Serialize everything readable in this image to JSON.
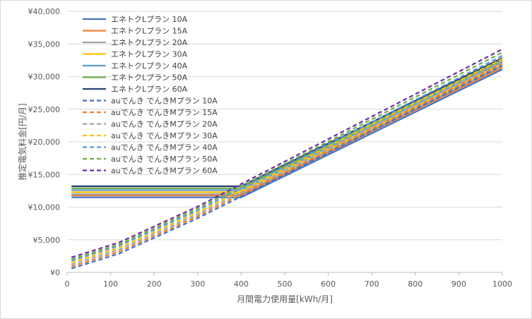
{
  "chart_data": {
    "type": "line",
    "xlabel": "月間電力使用量[kWh/月]",
    "ylabel": "推定電気料金[円/月]",
    "xlim": [
      0,
      1000
    ],
    "ylim": [
      0,
      40000
    ],
    "x_ticks": [
      "0",
      "100",
      "200",
      "300",
      "400",
      "500",
      "600",
      "700",
      "800",
      "900",
      "1000"
    ],
    "y_ticks": [
      "¥0",
      "¥5,000",
      "¥10,000",
      "¥15,000",
      "¥20,000",
      "¥25,000",
      "¥30,000",
      "¥35,000",
      "¥40,000"
    ],
    "grid": "horizontal",
    "legend_position": "top-left",
    "series": [
      {
        "name": "エネトクLプラン 10A",
        "color": "#4472C4",
        "dash": "solid",
        "x": [
          10,
          400,
          1000
        ],
        "y": [
          11500,
          11500,
          31100
        ]
      },
      {
        "name": "エネトクLプラン 15A",
        "color": "#ED7D31",
        "dash": "solid",
        "x": [
          10,
          400,
          1000
        ],
        "y": [
          11800,
          11800,
          31400
        ]
      },
      {
        "name": "エネトクLプラン 20A",
        "color": "#A5A5A5",
        "dash": "solid",
        "x": [
          10,
          400,
          1000
        ],
        "y": [
          12000,
          12000,
          31650
        ]
      },
      {
        "name": "エネトクLプラン 30A",
        "color": "#FFC000",
        "dash": "solid",
        "x": [
          10,
          400,
          1000
        ],
        "y": [
          12300,
          12300,
          31950
        ]
      },
      {
        "name": "エネトクLプラン 40A",
        "color": "#5B9BD5",
        "dash": "solid",
        "x": [
          10,
          400,
          1000
        ],
        "y": [
          12600,
          12600,
          32250
        ]
      },
      {
        "name": "エネトクLプラン 50A",
        "color": "#70AD47",
        "dash": "solid",
        "x": [
          10,
          400,
          1000
        ],
        "y": [
          12900,
          12900,
          32550
        ]
      },
      {
        "name": "エネトクLプラン 60A",
        "color": "#264478",
        "dash": "solid",
        "x": [
          10,
          400,
          1000
        ],
        "y": [
          13200,
          13200,
          32850
        ]
      },
      {
        "name": "auでんき でんきMプラン 10A",
        "color": "#4472C4",
        "dash": "dashed",
        "x": [
          10,
          120,
          300,
          1000
        ],
        "y": [
          600,
          2900,
          8300,
          31700
        ]
      },
      {
        "name": "auでんき でんきMプラン 15A",
        "color": "#ED7D31",
        "dash": "dashed",
        "x": [
          10,
          120,
          300,
          1000
        ],
        "y": [
          900,
          3200,
          8600,
          32000
        ]
      },
      {
        "name": "auでんき でんきMプラン 20A",
        "color": "#A5A5A5",
        "dash": "dashed",
        "x": [
          10,
          120,
          300,
          1000
        ],
        "y": [
          1200,
          3500,
          8900,
          32300
        ]
      },
      {
        "name": "auでんき でんきMプラン 30A",
        "color": "#FFC000",
        "dash": "dashed",
        "x": [
          10,
          120,
          300,
          1000
        ],
        "y": [
          1500,
          3800,
          9200,
          32700
        ]
      },
      {
        "name": "auでんき でんきMプラン 40A",
        "color": "#5B9BD5",
        "dash": "dashed",
        "x": [
          10,
          120,
          300,
          1000
        ],
        "y": [
          1800,
          4100,
          9500,
          33200
        ]
      },
      {
        "name": "auでんき でんきMプラン 50A",
        "color": "#70AD47",
        "dash": "dashed",
        "x": [
          10,
          120,
          300,
          1000
        ],
        "y": [
          2000,
          4300,
          9800,
          33700
        ]
      },
      {
        "name": "auでんき でんきMプラン 60A",
        "color": "#7030A0",
        "dash": "dashed",
        "x": [
          10,
          120,
          300,
          1000
        ],
        "y": [
          2300,
          4600,
          10100,
          34200
        ]
      }
    ]
  }
}
